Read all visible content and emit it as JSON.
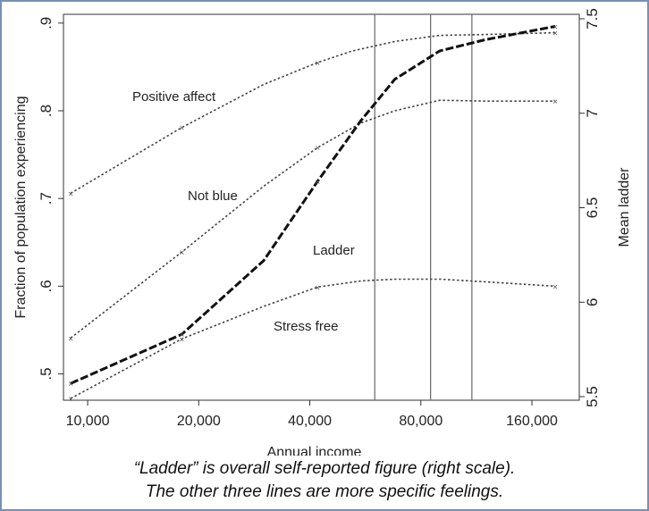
{
  "chart_data": {
    "type": "line",
    "xlabel": "Annual income",
    "ylabel_left": "Fraction of population experiencing",
    "ylabel_right": "Mean ladder",
    "x_scale": "log",
    "x_ticks": [
      {
        "value": 10000,
        "label": "10,000"
      },
      {
        "value": 20000,
        "label": "20,000"
      },
      {
        "value": 40000,
        "label": "40,000"
      },
      {
        "value": 80000,
        "label": "80,000"
      },
      {
        "value": 160000,
        "label": "160,000"
      }
    ],
    "y_left_ticks": [
      {
        "value": 0.5,
        "label": ".5"
      },
      {
        "value": 0.6,
        "label": ".6"
      },
      {
        "value": 0.7,
        "label": ".7"
      },
      {
        "value": 0.8,
        "label": ".8"
      },
      {
        "value": 0.9,
        "label": ".9"
      }
    ],
    "y_right_ticks": [
      {
        "value": 5.5,
        "label": "5.5"
      },
      {
        "value": 6,
        "label": "6"
      },
      {
        "value": 6.5,
        "label": "6.5"
      },
      {
        "value": 7,
        "label": "7"
      },
      {
        "value": 7.5,
        "label": "7.5"
      }
    ],
    "xlim": [
      8600,
      215000
    ],
    "ylim_left": [
      0.47,
      0.91
    ],
    "ylim_right": [
      5.5,
      7.5
    ],
    "vertical_lines_x": [
      60000,
      85000,
      110000
    ],
    "series": [
      {
        "name": "Positive affect",
        "axis": "left",
        "x": [
          9000,
          18000,
          30000,
          42000,
          52000,
          68000,
          90000,
          120000,
          185000
        ],
        "y": [
          0.706,
          0.781,
          0.83,
          0.855,
          0.868,
          0.879,
          0.886,
          0.887,
          0.889
        ]
      },
      {
        "name": "Not blue",
        "axis": "left",
        "x": [
          9000,
          18000,
          30000,
          42000,
          55000,
          68000,
          90000,
          120000,
          185000
        ],
        "y": [
          0.541,
          0.639,
          0.714,
          0.758,
          0.786,
          0.8,
          0.812,
          0.811,
          0.811
        ]
      },
      {
        "name": "Stress free",
        "axis": "left",
        "x": [
          9000,
          18000,
          30000,
          42000,
          55000,
          68000,
          90000,
          120000,
          185000
        ],
        "y": [
          0.472,
          0.54,
          0.577,
          0.599,
          0.606,
          0.608,
          0.608,
          0.605,
          0.6
        ]
      },
      {
        "name": "Ladder",
        "axis": "right",
        "x": [
          9000,
          18000,
          30000,
          42000,
          55000,
          68000,
          90000,
          120000,
          185000
        ],
        "y": [
          5.57,
          5.83,
          6.22,
          6.64,
          6.96,
          7.18,
          7.33,
          7.39,
          7.46
        ]
      }
    ],
    "labels": [
      {
        "series": "Positive affect",
        "text": "Positive affect"
      },
      {
        "series": "Not blue",
        "text": "Not blue"
      },
      {
        "series": "Ladder",
        "text": "Ladder"
      },
      {
        "series": "Stress free",
        "text": "Stress free"
      }
    ]
  },
  "caption": {
    "line1": "“Ladder” is overall self-reported figure (right scale).",
    "line2": "The other three lines are more specific feelings."
  },
  "colors": {
    "frame": "#7a8fb0",
    "ladder": "#111111",
    "feelings": "#444444",
    "positive": "#444444",
    "vline": "#666666"
  }
}
